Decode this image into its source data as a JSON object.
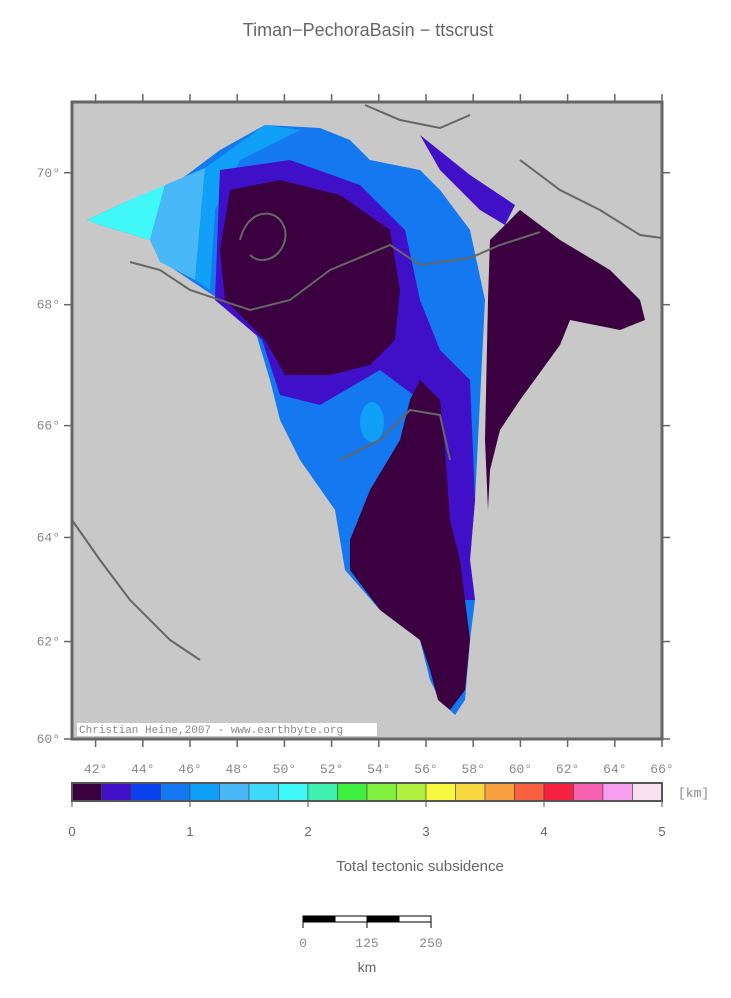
{
  "title": "Timan−PechoraBasin − ttscrust",
  "map": {
    "xlim": [
      41,
      66
    ],
    "ylim": [
      60,
      71
    ],
    "projection": "mercator",
    "xticks": [
      {
        "value": 42,
        "label": "42°"
      },
      {
        "value": 44,
        "label": "44°"
      },
      {
        "value": 46,
        "label": "46°"
      },
      {
        "value": 48,
        "label": "48°"
      },
      {
        "value": 50,
        "label": "50°"
      },
      {
        "value": 52,
        "label": "52°"
      },
      {
        "value": 54,
        "label": "54°"
      },
      {
        "value": 56,
        "label": "56°"
      },
      {
        "value": 58,
        "label": "58°"
      },
      {
        "value": 60,
        "label": "60°"
      },
      {
        "value": 62,
        "label": "62°"
      },
      {
        "value": 64,
        "label": "64°"
      },
      {
        "value": 66,
        "label": "66°"
      }
    ],
    "yticks": [
      {
        "value": 60,
        "label": "60°"
      },
      {
        "value": 62,
        "label": "62°"
      },
      {
        "value": 64,
        "label": "64°"
      },
      {
        "value": 66,
        "label": "66°"
      },
      {
        "value": 68,
        "label": "68°"
      },
      {
        "value": 70,
        "label": "70°"
      }
    ],
    "credit": "Christian Heine,2007 - www.earthbyte.org"
  },
  "colorbar": {
    "range": [
      0,
      5
    ],
    "ticks": [
      0,
      1,
      2,
      3,
      4,
      5
    ],
    "unit": "[km]",
    "label": "Total tectonic subsidence",
    "colors": [
      "#3a0040",
      "#4010c8",
      "#0a40f0",
      "#1478f0",
      "#10a0f8",
      "#48b8f8",
      "#40d8f8",
      "#40f8f8",
      "#40f0b0",
      "#40f040",
      "#80f040",
      "#b0f040",
      "#f8f840",
      "#f8d840",
      "#f8a040",
      "#f86040",
      "#f82040",
      "#f860b0",
      "#f8a0f0",
      "#f8e0f0"
    ]
  },
  "scalebar": {
    "ticks": [
      0,
      125,
      250
    ],
    "unit": "km"
  }
}
